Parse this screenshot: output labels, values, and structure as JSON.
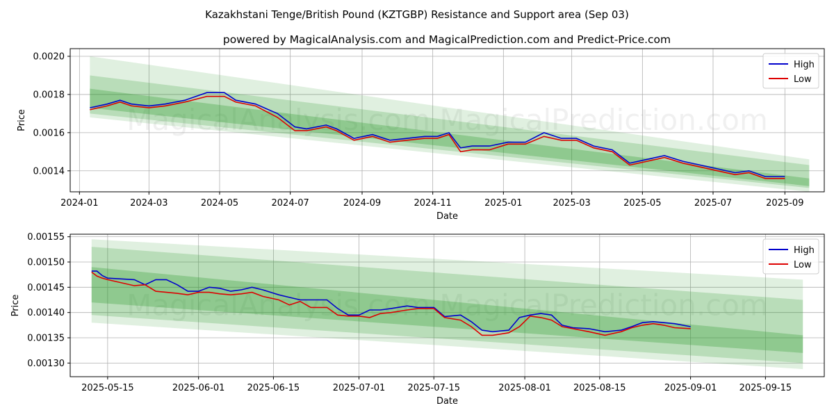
{
  "title": "Kazakhstani Tenge/British Pound (KZTGBP) Resistance and Support area (Sep 03)",
  "subtitle": "powered by MagicalAnalysis.com and MagicalPrediction.com and Predict-Price.com",
  "watermark": "MagicalAnalysis.com    MagicalPrediction.com",
  "colors": {
    "high": "#0000cc",
    "low": "#dd0000",
    "band": "#2e9a2e",
    "grid": "#b0b0b0"
  },
  "chart_data": [
    {
      "type": "line",
      "xlabel": "Date",
      "ylabel": "Price",
      "xlim": [
        "2023-12-24",
        "2025-10-05"
      ],
      "ylim": [
        0.00129,
        0.00204
      ],
      "grid": true,
      "legend": "top-right",
      "x_ticks": [
        "2024-01",
        "2024-03",
        "2024-05",
        "2024-07",
        "2024-09",
        "2024-11",
        "2025-01",
        "2025-03",
        "2025-05",
        "2025-07",
        "2025-09"
      ],
      "y_ticks": [
        "0.0014",
        "0.0016",
        "0.0018",
        "0.0020"
      ],
      "bands_start": "2024-01-10",
      "bands_end": "2025-09-22",
      "bands": [
        {
          "start": [
            0.00168,
            0.002
          ],
          "end": [
            0.00129,
            0.00146
          ],
          "opacity": 0.15
        },
        {
          "start": [
            0.0017,
            0.0019
          ],
          "end": [
            0.00131,
            0.00143
          ],
          "opacity": 0.22
        },
        {
          "start": [
            0.00173,
            0.00183
          ],
          "end": [
            0.00132,
            0.00136
          ],
          "opacity": 0.3
        }
      ],
      "series": [
        {
          "name": "High",
          "x": [
            "2024-01-10",
            "2024-01-25",
            "2024-02-05",
            "2024-02-15",
            "2024-03-01",
            "2024-03-15",
            "2024-04-01",
            "2024-04-20",
            "2024-05-05",
            "2024-05-15",
            "2024-06-01",
            "2024-06-20",
            "2024-07-05",
            "2024-07-15",
            "2024-08-01",
            "2024-08-10",
            "2024-08-25",
            "2024-09-10",
            "2024-09-25",
            "2024-10-10",
            "2024-10-25",
            "2024-11-05",
            "2024-11-15",
            "2024-11-25",
            "2024-12-05",
            "2024-12-20",
            "2025-01-05",
            "2025-01-20",
            "2025-02-05",
            "2025-02-20",
            "2025-03-05",
            "2025-03-20",
            "2025-04-05",
            "2025-04-20",
            "2025-05-05",
            "2025-05-20",
            "2025-06-05",
            "2025-06-20",
            "2025-07-05",
            "2025-07-20",
            "2025-08-01",
            "2025-08-15",
            "2025-09-01"
          ],
          "y": [
            0.00173,
            0.00175,
            0.00177,
            0.00175,
            0.00174,
            0.00175,
            0.00177,
            0.00181,
            0.00181,
            0.00177,
            0.00175,
            0.0017,
            0.00163,
            0.00162,
            0.00164,
            0.00162,
            0.00157,
            0.00159,
            0.00156,
            0.00157,
            0.00158,
            0.00158,
            0.0016,
            0.00152,
            0.00153,
            0.00153,
            0.00155,
            0.00155,
            0.0016,
            0.00157,
            0.00157,
            0.00153,
            0.00151,
            0.00144,
            0.00146,
            0.00148,
            0.00145,
            0.00143,
            0.00141,
            0.00139,
            0.0014,
            0.00137,
            0.00137
          ]
        },
        {
          "name": "Low",
          "x": [
            "2024-01-10",
            "2024-01-25",
            "2024-02-05",
            "2024-02-15",
            "2024-03-01",
            "2024-03-15",
            "2024-04-01",
            "2024-04-20",
            "2024-05-05",
            "2024-05-15",
            "2024-06-01",
            "2024-06-20",
            "2024-07-05",
            "2024-07-15",
            "2024-08-01",
            "2024-08-10",
            "2024-08-25",
            "2024-09-10",
            "2024-09-25",
            "2024-10-10",
            "2024-10-25",
            "2024-11-05",
            "2024-11-15",
            "2024-11-25",
            "2024-12-05",
            "2024-12-20",
            "2025-01-05",
            "2025-01-20",
            "2025-02-05",
            "2025-02-20",
            "2025-03-05",
            "2025-03-20",
            "2025-04-05",
            "2025-04-20",
            "2025-05-05",
            "2025-05-20",
            "2025-06-05",
            "2025-06-20",
            "2025-07-05",
            "2025-07-20",
            "2025-08-01",
            "2025-08-15",
            "2025-09-01"
          ],
          "y": [
            0.00172,
            0.00174,
            0.00176,
            0.00174,
            0.00173,
            0.00174,
            0.00176,
            0.00179,
            0.00179,
            0.00176,
            0.00174,
            0.00168,
            0.00161,
            0.00161,
            0.00163,
            0.00161,
            0.00156,
            0.00158,
            0.00155,
            0.00156,
            0.00157,
            0.00157,
            0.00159,
            0.0015,
            0.00151,
            0.00151,
            0.00154,
            0.00154,
            0.00158,
            0.00156,
            0.00156,
            0.00152,
            0.0015,
            0.00143,
            0.00145,
            0.00147,
            0.00144,
            0.00142,
            0.0014,
            0.00138,
            0.00139,
            0.00136,
            0.00136
          ]
        }
      ]
    },
    {
      "type": "line",
      "xlabel": "Date",
      "ylabel": "Price",
      "xlim": [
        "2025-05-08",
        "2025-09-26"
      ],
      "ylim": [
        0.001273,
        0.001555
      ],
      "grid": true,
      "legend": "top-right",
      "x_ticks": [
        "2025-05-15",
        "2025-06-01",
        "2025-06-15",
        "2025-07-01",
        "2025-07-15",
        "2025-08-01",
        "2025-08-15",
        "2025-09-01",
        "2025-09-15"
      ],
      "y_ticks": [
        "0.00130",
        "0.00135",
        "0.00140",
        "0.00145",
        "0.00150",
        "0.00155"
      ],
      "bands_start": "2025-05-12",
      "bands_end": "2025-09-22",
      "bands": [
        {
          "start": [
            0.00138,
            0.001545
          ],
          "end": [
            0.001288,
            0.001465
          ],
          "opacity": 0.15
        },
        {
          "start": [
            0.001395,
            0.00153
          ],
          "end": [
            0.0013,
            0.001425
          ],
          "opacity": 0.22
        },
        {
          "start": [
            0.00142,
            0.00149
          ],
          "end": [
            0.00132,
            0.001355
          ],
          "opacity": 0.3
        }
      ],
      "series": [
        {
          "name": "High",
          "x": [
            "2025-05-12",
            "2025-05-13",
            "2025-05-14",
            "2025-05-15",
            "2025-05-20",
            "2025-05-22",
            "2025-05-24",
            "2025-05-26",
            "2025-05-28",
            "2025-05-30",
            "2025-06-01",
            "2025-06-03",
            "2025-06-05",
            "2025-06-07",
            "2025-06-09",
            "2025-06-11",
            "2025-06-13",
            "2025-06-16",
            "2025-06-18",
            "2025-06-20",
            "2025-06-22",
            "2025-06-25",
            "2025-06-27",
            "2025-06-29",
            "2025-07-01",
            "2025-07-03",
            "2025-07-05",
            "2025-07-07",
            "2025-07-10",
            "2025-07-12",
            "2025-07-15",
            "2025-07-17",
            "2025-07-20",
            "2025-07-22",
            "2025-07-24",
            "2025-07-26",
            "2025-07-29",
            "2025-07-31",
            "2025-08-02",
            "2025-08-04",
            "2025-08-06",
            "2025-08-08",
            "2025-08-10",
            "2025-08-13",
            "2025-08-16",
            "2025-08-19",
            "2025-08-21",
            "2025-08-23",
            "2025-08-25",
            "2025-08-27",
            "2025-08-29",
            "2025-09-01"
          ],
          "y": [
            0.001482,
            0.001482,
            0.001473,
            0.001468,
            0.001465,
            0.001455,
            0.001465,
            0.001465,
            0.001455,
            0.001442,
            0.001442,
            0.00145,
            0.001448,
            0.001442,
            0.001445,
            0.00145,
            0.001445,
            0.001435,
            0.00143,
            0.001425,
            0.001425,
            0.001425,
            0.001408,
            0.001395,
            0.001395,
            0.001405,
            0.001405,
            0.001408,
            0.001413,
            0.00141,
            0.00141,
            0.001392,
            0.001395,
            0.001382,
            0.001365,
            0.001362,
            0.001365,
            0.00139,
            0.001395,
            0.001398,
            0.001395,
            0.001375,
            0.00137,
            0.001368,
            0.001362,
            0.001365,
            0.001372,
            0.00138,
            0.001382,
            0.00138,
            0.001378,
            0.001372
          ]
        },
        {
          "name": "Low",
          "x": [
            "2025-05-12",
            "2025-05-13",
            "2025-05-14",
            "2025-05-15",
            "2025-05-20",
            "2025-05-22",
            "2025-05-24",
            "2025-05-26",
            "2025-05-28",
            "2025-05-30",
            "2025-06-01",
            "2025-06-03",
            "2025-06-05",
            "2025-06-07",
            "2025-06-09",
            "2025-06-11",
            "2025-06-13",
            "2025-06-16",
            "2025-06-18",
            "2025-06-20",
            "2025-06-22",
            "2025-06-25",
            "2025-06-27",
            "2025-06-29",
            "2025-07-01",
            "2025-07-03",
            "2025-07-05",
            "2025-07-07",
            "2025-07-10",
            "2025-07-12",
            "2025-07-15",
            "2025-07-17",
            "2025-07-20",
            "2025-07-22",
            "2025-07-24",
            "2025-07-26",
            "2025-07-29",
            "2025-07-31",
            "2025-08-02",
            "2025-08-04",
            "2025-08-06",
            "2025-08-08",
            "2025-08-10",
            "2025-08-13",
            "2025-08-16",
            "2025-08-19",
            "2025-08-21",
            "2025-08-23",
            "2025-08-25",
            "2025-08-27",
            "2025-08-29",
            "2025-09-01"
          ],
          "y": [
            0.00148,
            0.001472,
            0.001468,
            0.001465,
            0.001453,
            0.001455,
            0.001442,
            0.00144,
            0.001438,
            0.001435,
            0.00144,
            0.00144,
            0.001437,
            0.001435,
            0.001437,
            0.00144,
            0.001432,
            0.001425,
            0.001415,
            0.001422,
            0.00141,
            0.00141,
            0.001395,
            0.001393,
            0.001393,
            0.00139,
            0.001398,
            0.0014,
            0.001405,
            0.001408,
            0.001408,
            0.00139,
            0.001385,
            0.001372,
            0.001355,
            0.001355,
            0.00136,
            0.001372,
            0.001393,
            0.00139,
            0.001385,
            0.001372,
            0.001368,
            0.001362,
            0.001355,
            0.001362,
            0.00137,
            0.001375,
            0.001378,
            0.001375,
            0.00137,
            0.001368
          ]
        }
      ]
    }
  ]
}
